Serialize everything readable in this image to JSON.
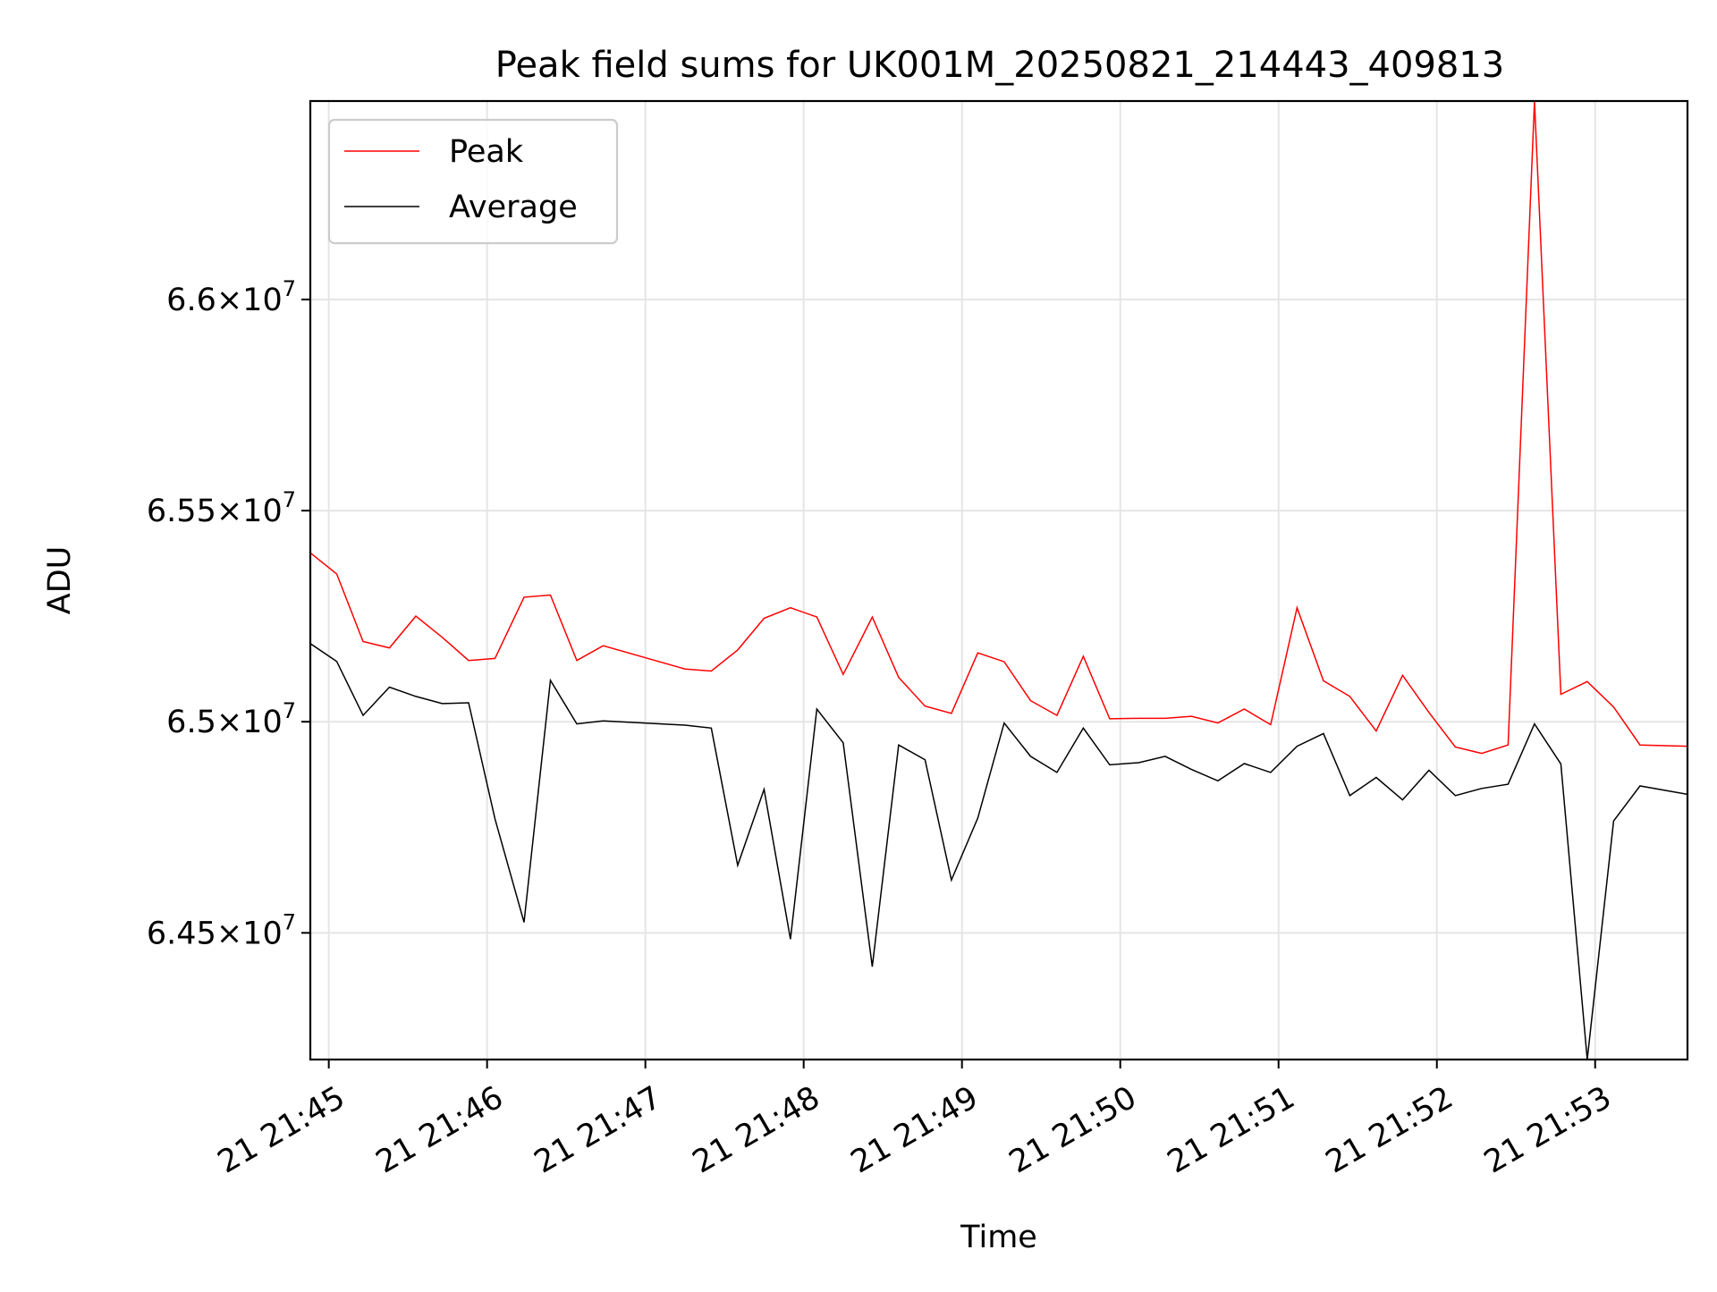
{
  "chart_data": {
    "type": "line",
    "title": "Peak field sums for UK001M_20250821_214443_409813",
    "xlabel": "Time",
    "ylabel": "ADU",
    "xlim": [
      "21:44:53",
      "21:53:35"
    ],
    "ylim": [
      64200000,
      66470000
    ],
    "x_ticks": [
      {
        "t": "21:45:00",
        "label": "21 21:45"
      },
      {
        "t": "21:46:00",
        "label": "21 21:46"
      },
      {
        "t": "21:47:00",
        "label": "21 21:47"
      },
      {
        "t": "21:48:00",
        "label": "21 21:48"
      },
      {
        "t": "21:49:00",
        "label": "21 21:49"
      },
      {
        "t": "21:50:00",
        "label": "21 21:50"
      },
      {
        "t": "21:51:00",
        "label": "21 21:51"
      },
      {
        "t": "21:52:00",
        "label": "21 21:52"
      },
      {
        "t": "21:53:00",
        "label": "21 21:53"
      }
    ],
    "y_ticks": [
      {
        "value": 64500000,
        "mantissa": "6.45",
        "exponent": "7"
      },
      {
        "value": 65000000,
        "mantissa": "6.5",
        "exponent": "7"
      },
      {
        "value": 65500000,
        "mantissa": "6.55",
        "exponent": "7"
      },
      {
        "value": 66000000,
        "mantissa": "6.6",
        "exponent": "7"
      }
    ],
    "grid": true,
    "legend_position": "top-left",
    "series": [
      {
        "name": "Peak",
        "color": "#ff0000",
        "points": [
          [
            "21:44:53",
            65400000
          ],
          [
            "21:45:03",
            65350000
          ],
          [
            "21:45:13",
            65190000
          ],
          [
            "21:45:23",
            65175000
          ],
          [
            "21:45:33",
            65250000
          ],
          [
            "21:45:43",
            65200000
          ],
          [
            "21:45:53",
            65145000
          ],
          [
            "21:46:03",
            65150000
          ],
          [
            "21:46:14",
            65295000
          ],
          [
            "21:46:24",
            65300000
          ],
          [
            "21:46:34",
            65145000
          ],
          [
            "21:46:44",
            65180000
          ],
          [
            "21:47:15",
            65125000
          ],
          [
            "21:47:25",
            65120000
          ],
          [
            "21:47:35",
            65170000
          ],
          [
            "21:47:45",
            65245000
          ],
          [
            "21:47:55",
            65270000
          ],
          [
            "21:48:05",
            65248000
          ],
          [
            "21:48:15",
            65112000
          ],
          [
            "21:48:26",
            65248000
          ],
          [
            "21:48:36",
            65105000
          ],
          [
            "21:48:46",
            65037000
          ],
          [
            "21:48:56",
            65020000
          ],
          [
            "21:49:06",
            65163000
          ],
          [
            "21:49:16",
            65142000
          ],
          [
            "21:49:26",
            65050000
          ],
          [
            "21:49:36",
            65015000
          ],
          [
            "21:49:46",
            65155000
          ],
          [
            "21:49:56",
            65007000
          ],
          [
            "21:50:07",
            65008000
          ],
          [
            "21:50:17",
            65008000
          ],
          [
            "21:50:27",
            65013000
          ],
          [
            "21:50:37",
            64997000
          ],
          [
            "21:50:47",
            65030000
          ],
          [
            "21:50:57",
            64993000
          ],
          [
            "21:51:07",
            65270000
          ],
          [
            "21:51:17",
            65097000
          ],
          [
            "21:51:27",
            65060000
          ],
          [
            "21:51:37",
            64978000
          ],
          [
            "21:51:47",
            65110000
          ],
          [
            "21:51:57",
            65022000
          ],
          [
            "21:52:07",
            64940000
          ],
          [
            "21:52:17",
            64925000
          ],
          [
            "21:52:27",
            64945000
          ],
          [
            "21:52:37",
            66470000
          ],
          [
            "21:52:47",
            65065000
          ],
          [
            "21:52:57",
            65095000
          ],
          [
            "21:53:07",
            65035000
          ],
          [
            "21:53:17",
            64945000
          ],
          [
            "21:53:35",
            64942000
          ]
        ]
      },
      {
        "name": "Average",
        "color": "#000000",
        "points": [
          [
            "21:44:53",
            65185000
          ],
          [
            "21:45:03",
            65143000
          ],
          [
            "21:45:13",
            65015000
          ],
          [
            "21:45:23",
            65082000
          ],
          [
            "21:45:33",
            65060000
          ],
          [
            "21:45:43",
            65043000
          ],
          [
            "21:45:53",
            65045000
          ],
          [
            "21:46:03",
            64770000
          ],
          [
            "21:46:14",
            64525000
          ],
          [
            "21:46:24",
            65098000
          ],
          [
            "21:46:34",
            64995000
          ],
          [
            "21:46:44",
            65002000
          ],
          [
            "21:47:15",
            64992000
          ],
          [
            "21:47:25",
            64985000
          ],
          [
            "21:47:35",
            64660000
          ],
          [
            "21:47:45",
            64840000
          ],
          [
            "21:47:55",
            64485000
          ],
          [
            "21:48:05",
            65030000
          ],
          [
            "21:48:15",
            64950000
          ],
          [
            "21:48:26",
            64420000
          ],
          [
            "21:48:36",
            64945000
          ],
          [
            "21:48:46",
            64910000
          ],
          [
            "21:48:56",
            64625000
          ],
          [
            "21:49:06",
            64772000
          ],
          [
            "21:49:16",
            64997000
          ],
          [
            "21:49:26",
            64918000
          ],
          [
            "21:49:36",
            64880000
          ],
          [
            "21:49:46",
            64985000
          ],
          [
            "21:49:56",
            64898000
          ],
          [
            "21:50:07",
            64903000
          ],
          [
            "21:50:17",
            64918000
          ],
          [
            "21:50:27",
            64887000
          ],
          [
            "21:50:37",
            64860000
          ],
          [
            "21:50:47",
            64901000
          ],
          [
            "21:50:57",
            64880000
          ],
          [
            "21:51:07",
            64942000
          ],
          [
            "21:51:17",
            64972000
          ],
          [
            "21:51:27",
            64825000
          ],
          [
            "21:51:37",
            64868000
          ],
          [
            "21:51:47",
            64815000
          ],
          [
            "21:51:57",
            64885000
          ],
          [
            "21:52:07",
            64825000
          ],
          [
            "21:52:17",
            64842000
          ],
          [
            "21:52:27",
            64852000
          ],
          [
            "21:52:37",
            64995000
          ],
          [
            "21:52:47",
            64900000
          ],
          [
            "21:52:57",
            64200000
          ],
          [
            "21:53:07",
            64765000
          ],
          [
            "21:53:17",
            64848000
          ],
          [
            "21:53:35",
            64828000
          ]
        ]
      }
    ]
  }
}
